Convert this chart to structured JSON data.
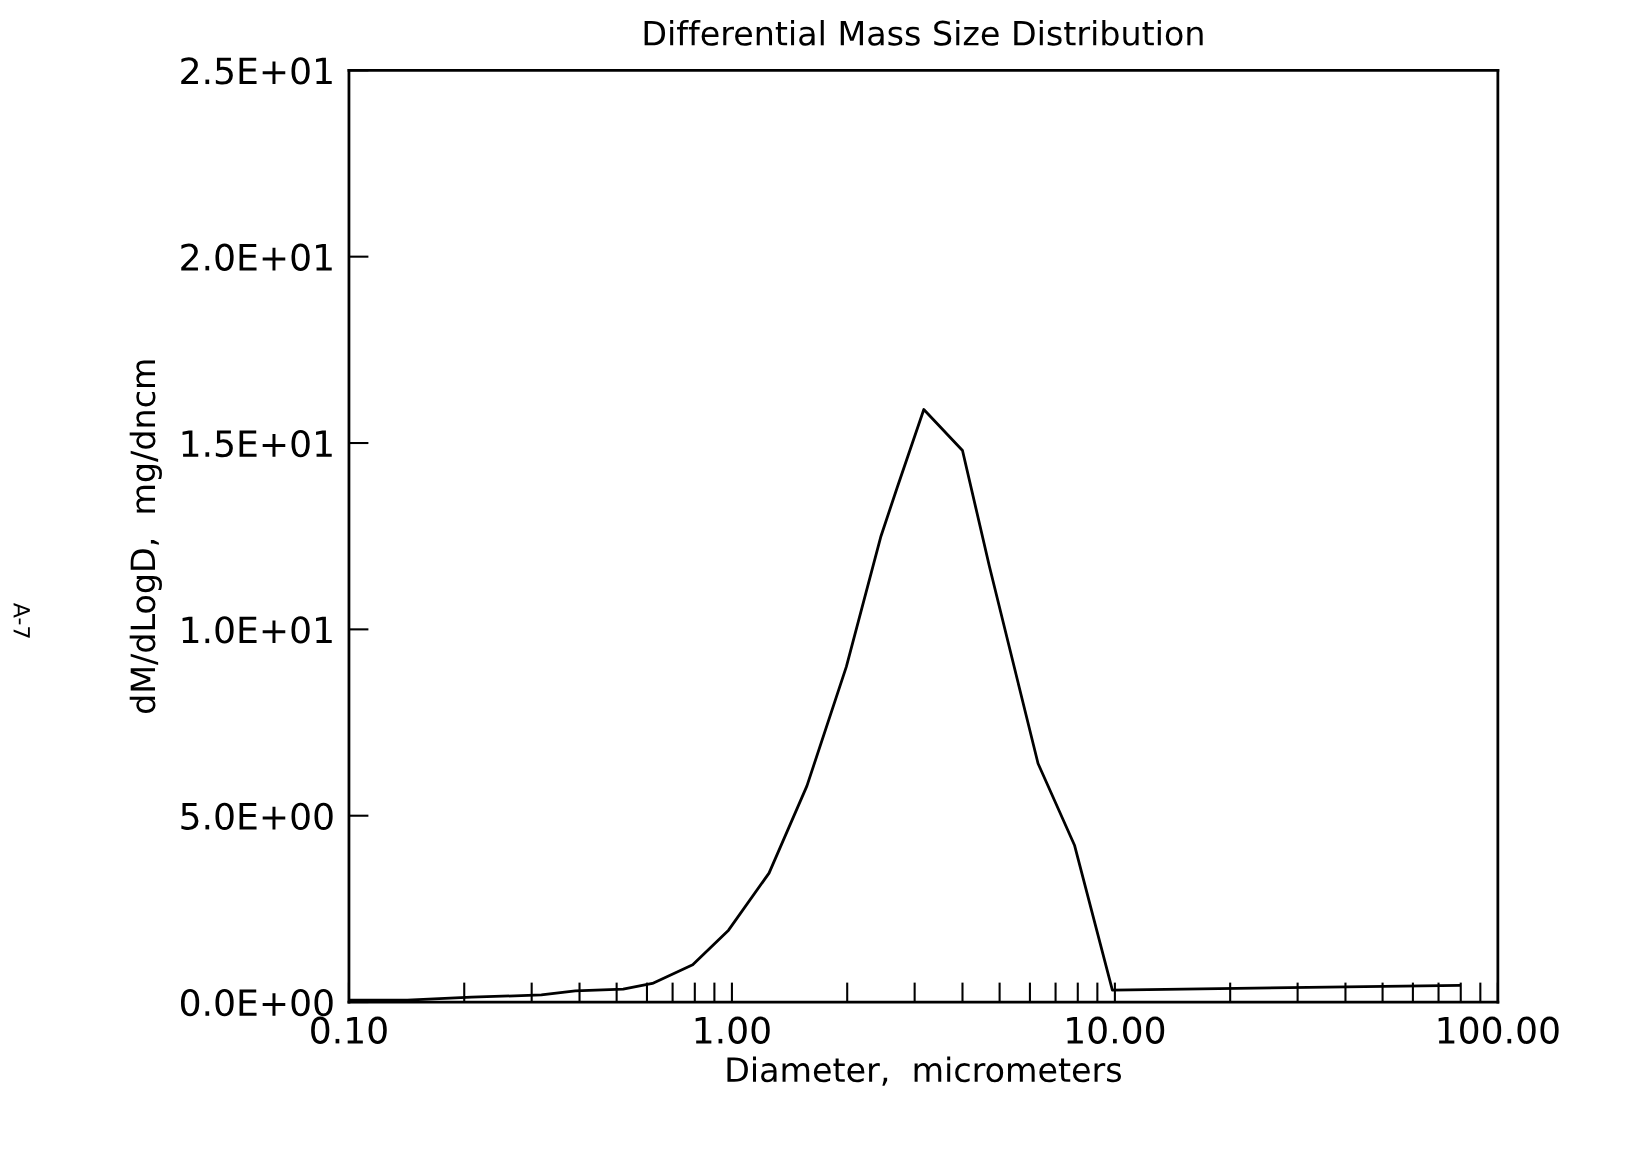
{
  "chart_data": {
    "type": "line",
    "title": "Differential Mass Size Distribution",
    "xlabel": "Diameter,  micrometers",
    "ylabel": "dM/dLogD,  mg/dncm",
    "annotations": [
      "A-7"
    ],
    "log": "x",
    "grid": false,
    "marker": "none",
    "line_style": "solid",
    "x": [
      0.1,
      0.142,
      0.209,
      0.318,
      0.39,
      0.52,
      0.62,
      0.79,
      0.98,
      1.25,
      1.57,
      1.99,
      2.45,
      2.7,
      3.17,
      4.0,
      4.7,
      6.3,
      7.85,
      9.85,
      79
    ],
    "series": [
      {
        "color": "#000000",
        "values": [
          0.05,
          0.05,
          0.13,
          0.19,
          0.3,
          0.35,
          0.5,
          1.0,
          1.93,
          3.46,
          5.8,
          9.0,
          12.5,
          13.8,
          15.9,
          14.8,
          11.7,
          6.4,
          4.2,
          0.32,
          0.45
        ]
      }
    ],
    "xlim": [
      0.1,
      100
    ],
    "ylim": [
      0,
      25
    ],
    "xticks": [
      {
        "value": 0.1,
        "label": "0.10"
      },
      {
        "value": 1,
        "label": "1.00"
      },
      {
        "value": 10,
        "label": "10.00"
      },
      {
        "value": 100,
        "label": "100.00"
      }
    ],
    "yticks": [
      {
        "value": 0,
        "label": "0.0E+00"
      },
      {
        "value": 5,
        "label": "5.0E+00"
      },
      {
        "value": 10,
        "label": "1.0E+01"
      },
      {
        "value": 15,
        "label": "1.5E+01"
      },
      {
        "value": 20,
        "label": "2.0E+01"
      },
      {
        "value": 25,
        "label": "2.5E+01"
      }
    ]
  }
}
